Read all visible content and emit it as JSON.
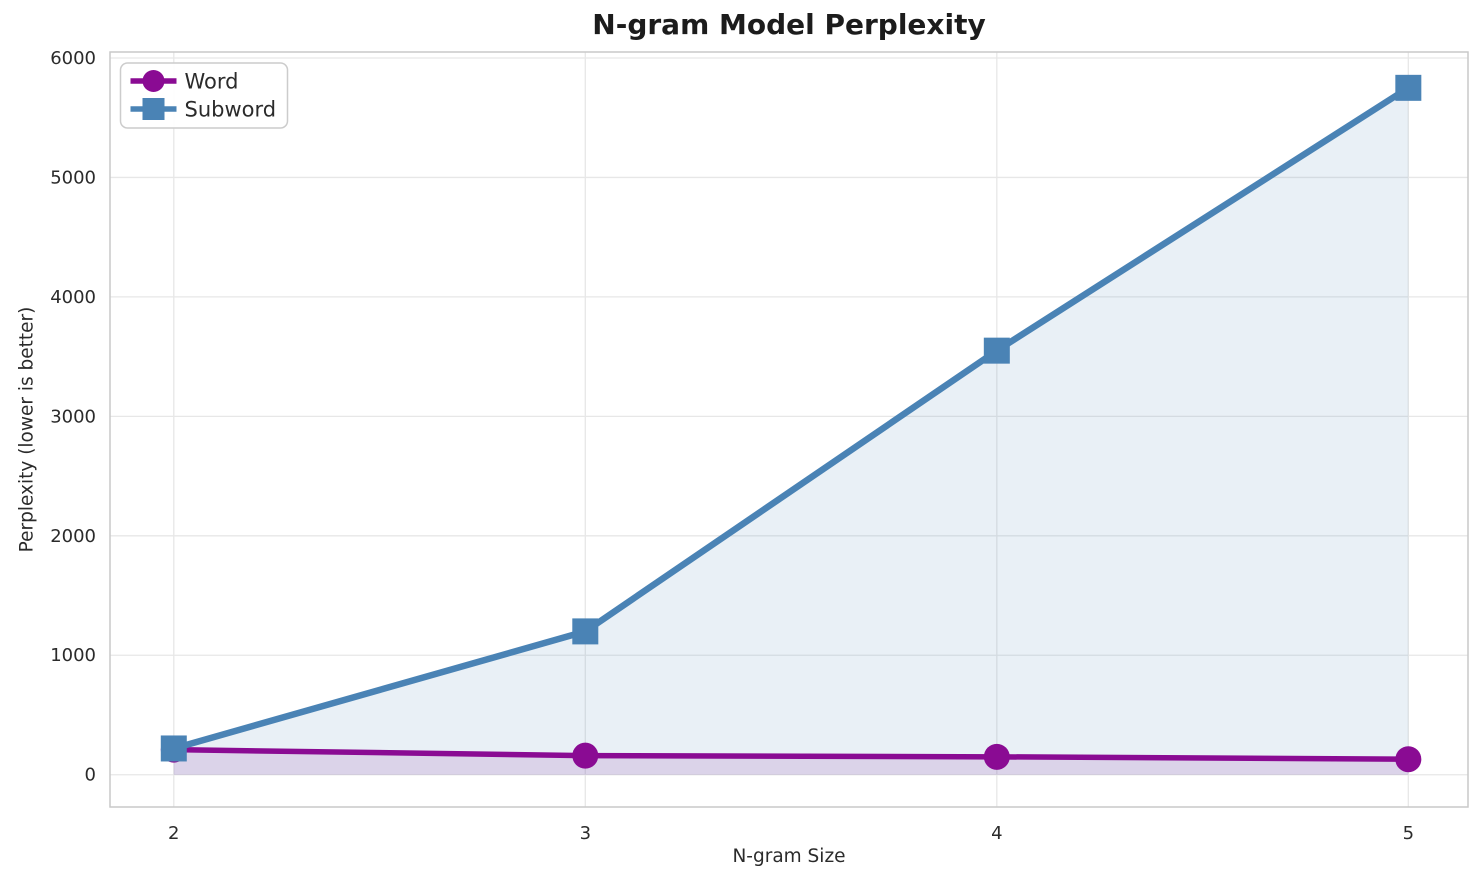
{
  "chart_data": {
    "type": "line",
    "title": "N-gram Model Perplexity",
    "xlabel": "N-gram Size",
    "ylabel": "Perplexity (lower is better)",
    "x": [
      2,
      3,
      4,
      5
    ],
    "xticks": [
      2,
      3,
      4,
      5
    ],
    "xtick_labels": [
      "2",
      "3",
      "4",
      "5"
    ],
    "yticks": [
      0,
      1000,
      2000,
      3000,
      4000,
      5000,
      6000
    ],
    "ytick_labels": [
      "0",
      "1000",
      "2000",
      "3000",
      "4000",
      "5000",
      "6000"
    ],
    "xlim": [
      1.845,
      5.145
    ],
    "ylim": [
      -270,
      6050
    ],
    "grid": true,
    "legend_position": "upper left",
    "fill_baseline": 0,
    "series": [
      {
        "name": "Word",
        "color": "#8A0B93",
        "marker": "circle",
        "line_width": 5.5,
        "marker_size": 26,
        "fill_alpha": 0.13,
        "values": [
          210,
          160,
          150,
          130
        ]
      },
      {
        "name": "Subword",
        "color": "#4A83B5",
        "marker": "square",
        "line_width": 6.5,
        "marker_size": 26,
        "fill_alpha": 0.12,
        "values": [
          220,
          1200,
          3550,
          5750
        ]
      }
    ]
  },
  "style": {
    "background": "#ffffff",
    "grid_color": "#e7e7e7",
    "spine_color": "#c9c9c9",
    "text_color": "#2b2b2b",
    "title_color": "#1c1c1c",
    "legend_border": "#cccccc",
    "legend_background": "#ffffff"
  }
}
